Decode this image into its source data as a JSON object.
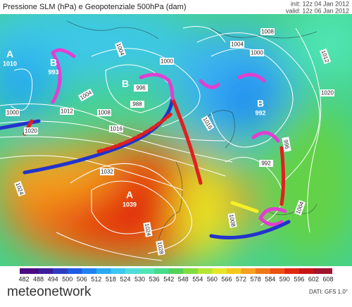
{
  "header": {
    "title": "Pressione SLM (hPa) e Geopotenziale 500hPa (dam)",
    "init": "init: 12z 04 Jan 2012",
    "valid": "valid: 12z 06 Jan 2012"
  },
  "centers": [
    {
      "letter": "A",
      "value": 1010
    },
    {
      "letter": "B",
      "value": 993
    },
    {
      "letter": "B"
    },
    {
      "letter": "A",
      "value": 1039
    },
    {
      "letter": "B",
      "value": 992
    }
  ],
  "isobar_labels": [
    1000,
    1004,
    1008,
    1012,
    1016,
    1020,
    1024,
    1028,
    1032,
    1000,
    1004,
    988,
    996,
    1000,
    1004,
    1008,
    992,
    996,
    1008,
    1004,
    1012,
    1020,
    1024,
    1016
  ],
  "colorbar": {
    "ticks": [
      482,
      488,
      494,
      500,
      506,
      512,
      518,
      524,
      530,
      536,
      542,
      548,
      554,
      560,
      566,
      572,
      578,
      584,
      590,
      596,
      602,
      608
    ],
    "colors": [
      "#4b0a82",
      "#3c1e9a",
      "#2d3cc0",
      "#1e5ae6",
      "#1e82f0",
      "#28aaf0",
      "#3cc8f0",
      "#50dcdc",
      "#50e6b4",
      "#46dc8c",
      "#50d25a",
      "#82dc3c",
      "#b4e632",
      "#e6e628",
      "#f5c81e",
      "#f5a01e",
      "#f07819",
      "#eb5014",
      "#e1280f",
      "#c81414",
      "#a0142d"
    ]
  },
  "footer": {
    "logo": "meteonetwork",
    "source": "DATI: GFS 1.0°"
  }
}
